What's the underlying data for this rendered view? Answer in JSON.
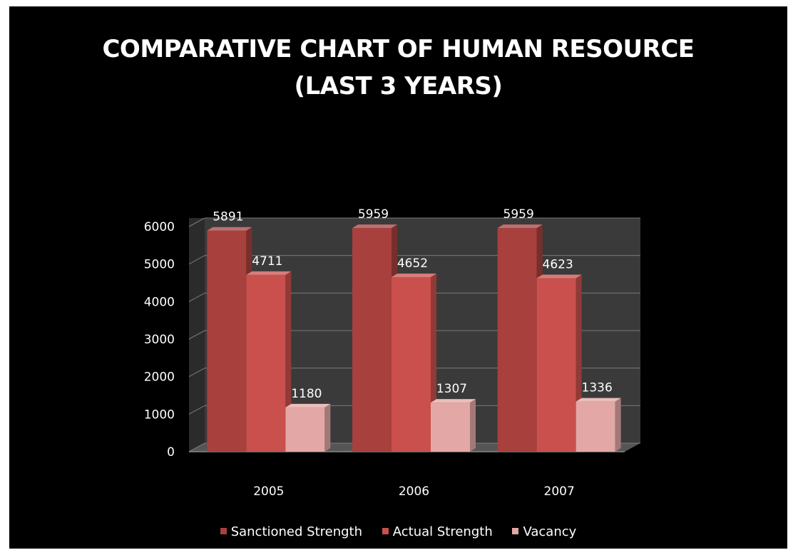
{
  "chart_data": {
    "type": "bar",
    "title_lines": [
      "COMPARATIVE CHART OF HUMAN RESOURCE",
      "(LAST 3 YEARS)"
    ],
    "categories": [
      "2005",
      "2006",
      "2007"
    ],
    "series": [
      {
        "name": "Sanctioned Strength",
        "values": [
          5891,
          5959,
          5959
        ],
        "color": "#a8403d"
      },
      {
        "name": "Actual Strength",
        "values": [
          4711,
          4652,
          4623
        ],
        "color": "#c9504d"
      },
      {
        "name": "Vacancy",
        "values": [
          1180,
          1307,
          1336
        ],
        "color": "#e3a8a6"
      }
    ],
    "y_ticks": [
      "0",
      "1000",
      "2000",
      "3000",
      "4000",
      "5000",
      "6000"
    ],
    "ylim": [
      0,
      6000
    ],
    "grid": true,
    "legend_position": "bottom",
    "background": "#000000",
    "text_color": "#ffffff"
  }
}
